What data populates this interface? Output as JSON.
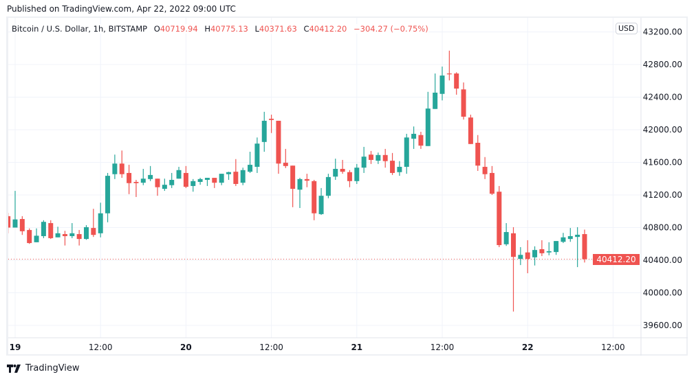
{
  "header": {
    "published": "Published on TradingView.com, Apr 22, 2022 09:00 UTC"
  },
  "legend": {
    "symbol": "Bitcoin / U.S. Dollar, 1h, BITSTAMP",
    "o_label": "O",
    "o_value": "40719.94",
    "h_label": "H",
    "h_value": "40775.13",
    "l_label": "L",
    "l_value": "40371.63",
    "c_label": "C",
    "c_value": "40412.20",
    "change": "−304.27 (−0.75%)"
  },
  "currency_button": "USD",
  "last_price_label": "40412.20",
  "footer": {
    "brand": "TradingView"
  },
  "colors": {
    "up": "#26a69a",
    "down": "#ef5350",
    "grid": "#f0f3fa",
    "axis_border": "#e0e3eb"
  },
  "chart_data": {
    "type": "candlestick",
    "interval": "1h",
    "ylim": [
      39500,
      43250
    ],
    "grid": true,
    "y_ticks": [
      "43200.00",
      "42800.00",
      "42400.00",
      "42000.00",
      "41600.00",
      "41200.00",
      "40800.00",
      "40400.00",
      "40000.00",
      "39600.00"
    ],
    "x_ticks": [
      {
        "t": "2022-04-19T00:00",
        "label": "19",
        "bold": true
      },
      {
        "t": "2022-04-19T12:00",
        "label": "12:00"
      },
      {
        "t": "2022-04-20T00:00",
        "label": "20",
        "bold": true
      },
      {
        "t": "2022-04-20T12:00",
        "label": "12:00"
      },
      {
        "t": "2022-04-21T00:00",
        "label": "21",
        "bold": true
      },
      {
        "t": "2022-04-21T12:00",
        "label": "12:00"
      },
      {
        "t": "2022-04-22T00:00",
        "label": "22",
        "bold": true
      },
      {
        "t": "2022-04-22T12:00",
        "label": "12:00"
      }
    ],
    "last_price": 40412.2,
    "columns": [
      "time",
      "open",
      "high",
      "low",
      "close"
    ],
    "candles": [
      [
        "2022-04-18T23:00",
        40940,
        40980,
        40730,
        40800
      ],
      [
        "2022-04-19T00:00",
        40800,
        41250,
        40800,
        40900
      ],
      [
        "2022-04-19T01:00",
        40905,
        40940,
        40710,
        40755
      ],
      [
        "2022-04-19T02:00",
        40770,
        40790,
        40600,
        40610
      ],
      [
        "2022-04-19T03:00",
        40620,
        40790,
        40620,
        40700
      ],
      [
        "2022-04-19T04:00",
        40695,
        40890,
        40670,
        40870
      ],
      [
        "2022-04-19T05:00",
        40855,
        40890,
        40660,
        40670
      ],
      [
        "2022-04-19T06:00",
        40680,
        40810,
        40680,
        40730
      ],
      [
        "2022-04-19T07:00",
        40720,
        40760,
        40580,
        40695
      ],
      [
        "2022-04-19T08:00",
        40695,
        40855,
        40670,
        40730
      ],
      [
        "2022-04-19T09:00",
        40720,
        40770,
        40580,
        40660
      ],
      [
        "2022-04-19T10:00",
        40660,
        40830,
        40650,
        40805
      ],
      [
        "2022-04-19T11:00",
        40795,
        41030,
        40685,
        40710
      ],
      [
        "2022-04-19T12:00",
        40730,
        41105,
        40680,
        40975
      ],
      [
        "2022-04-19T13:00",
        40975,
        41470,
        40865,
        41435
      ],
      [
        "2022-04-19T14:00",
        41455,
        41695,
        41395,
        41585
      ],
      [
        "2022-04-19T15:00",
        41585,
        41745,
        41410,
        41455
      ],
      [
        "2022-04-19T16:00",
        41470,
        41570,
        41210,
        41345
      ],
      [
        "2022-04-19T17:00",
        41360,
        41385,
        41175,
        41345
      ],
      [
        "2022-04-19T18:00",
        41350,
        41520,
        41320,
        41400
      ],
      [
        "2022-04-19T19:00",
        41395,
        41555,
        41370,
        41445
      ],
      [
        "2022-04-19T20:00",
        41400,
        41400,
        41190,
        41295
      ],
      [
        "2022-04-19T21:00",
        41275,
        41400,
        41250,
        41325
      ],
      [
        "2022-04-19T22:00",
        41320,
        41470,
        41285,
        41385
      ],
      [
        "2022-04-19T23:00",
        41400,
        41545,
        41400,
        41505
      ],
      [
        "2022-04-20T00:00",
        41470,
        41555,
        41285,
        41300
      ],
      [
        "2022-04-20T01:00",
        41310,
        41395,
        41240,
        41370
      ],
      [
        "2022-04-20T02:00",
        41360,
        41410,
        41325,
        41395
      ],
      [
        "2022-04-20T03:00",
        41385,
        41410,
        41310,
        41410
      ],
      [
        "2022-04-20T04:00",
        41410,
        41410,
        41285,
        41350
      ],
      [
        "2022-04-20T05:00",
        41350,
        41460,
        41320,
        41460
      ],
      [
        "2022-04-20T06:00",
        41455,
        41485,
        41385,
        41480
      ],
      [
        "2022-04-20T07:00",
        41485,
        41640,
        41310,
        41335
      ],
      [
        "2022-04-20T08:00",
        41350,
        41535,
        41320,
        41505
      ],
      [
        "2022-04-20T09:00",
        41485,
        41730,
        41470,
        41570
      ],
      [
        "2022-04-20T10:00",
        41545,
        41905,
        41470,
        41830
      ],
      [
        "2022-04-20T11:00",
        41850,
        42220,
        41730,
        42110
      ],
      [
        "2022-04-20T12:00",
        42135,
        42185,
        41960,
        42120
      ],
      [
        "2022-04-20T13:00",
        42110,
        42110,
        41460,
        41585
      ],
      [
        "2022-04-20T14:00",
        41595,
        41765,
        41530,
        41555
      ],
      [
        "2022-04-20T15:00",
        41560,
        41560,
        41050,
        41275
      ],
      [
        "2022-04-20T16:00",
        41265,
        41410,
        41040,
        41395
      ],
      [
        "2022-04-20T17:00",
        41395,
        41460,
        41295,
        41375
      ],
      [
        "2022-04-20T18:00",
        41370,
        41385,
        40890,
        40975
      ],
      [
        "2022-04-20T19:00",
        40965,
        41285,
        40955,
        41190
      ],
      [
        "2022-04-20T20:00",
        41190,
        41460,
        41160,
        41420
      ],
      [
        "2022-04-20T21:00",
        41425,
        41645,
        41385,
        41520
      ],
      [
        "2022-04-20T22:00",
        41520,
        41630,
        41460,
        41485
      ],
      [
        "2022-04-20T23:00",
        41480,
        41505,
        41295,
        41370
      ],
      [
        "2022-04-21T00:00",
        41370,
        41580,
        41335,
        41535
      ],
      [
        "2022-04-21T01:00",
        41535,
        41790,
        41470,
        41670
      ],
      [
        "2022-04-21T02:00",
        41695,
        41740,
        41580,
        41630
      ],
      [
        "2022-04-21T03:00",
        41620,
        41720,
        41580,
        41690
      ],
      [
        "2022-04-21T04:00",
        41690,
        41765,
        41535,
        41615
      ],
      [
        "2022-04-21T05:00",
        41620,
        41715,
        41445,
        41470
      ],
      [
        "2022-04-21T06:00",
        41480,
        41615,
        41435,
        41545
      ],
      [
        "2022-04-21T07:00",
        41545,
        41950,
        41460,
        41905
      ],
      [
        "2022-04-21T08:00",
        41890,
        42040,
        41765,
        41950
      ],
      [
        "2022-04-21T09:00",
        41935,
        41975,
        41765,
        41805
      ],
      [
        "2022-04-21T10:00",
        41800,
        42465,
        41800,
        42260
      ],
      [
        "2022-04-21T11:00",
        42255,
        42690,
        42255,
        42455
      ],
      [
        "2022-04-21T12:00",
        42440,
        42775,
        42360,
        42665
      ],
      [
        "2022-04-21T13:00",
        42690,
        42970,
        42605,
        42680
      ],
      [
        "2022-04-21T14:00",
        42690,
        42705,
        42430,
        42505
      ],
      [
        "2022-04-21T15:00",
        42495,
        42580,
        42125,
        42160
      ],
      [
        "2022-04-21T16:00",
        42150,
        42185,
        41825,
        41825
      ],
      [
        "2022-04-21T17:00",
        41840,
        41935,
        41495,
        41560
      ],
      [
        "2022-04-21T18:00",
        41545,
        41665,
        41395,
        41455
      ],
      [
        "2022-04-21T19:00",
        41470,
        41555,
        41200,
        41215
      ],
      [
        "2022-04-21T20:00",
        41240,
        41310,
        40560,
        40585
      ],
      [
        "2022-04-21T21:00",
        40595,
        40855,
        40575,
        40745
      ],
      [
        "2022-04-21T22:00",
        40730,
        40805,
        39770,
        40440
      ],
      [
        "2022-04-21T23:00",
        40415,
        40560,
        40340,
        40465
      ],
      [
        "2022-04-22T00:00",
        40495,
        40645,
        40240,
        40415
      ],
      [
        "2022-04-22T01:00",
        40435,
        40570,
        40335,
        40525
      ],
      [
        "2022-04-22T02:00",
        40535,
        40645,
        40450,
        40485
      ],
      [
        "2022-04-22T03:00",
        40495,
        40620,
        40460,
        40510
      ],
      [
        "2022-04-22T04:00",
        40500,
        40635,
        40465,
        40635
      ],
      [
        "2022-04-22T05:00",
        40625,
        40735,
        40610,
        40680
      ],
      [
        "2022-04-22T06:00",
        40660,
        40795,
        40625,
        40695
      ],
      [
        "2022-04-22T07:00",
        40685,
        40805,
        40315,
        40712
      ],
      [
        "2022-04-22T08:00",
        40719.94,
        40775.13,
        40371.63,
        40412.2
      ]
    ]
  }
}
